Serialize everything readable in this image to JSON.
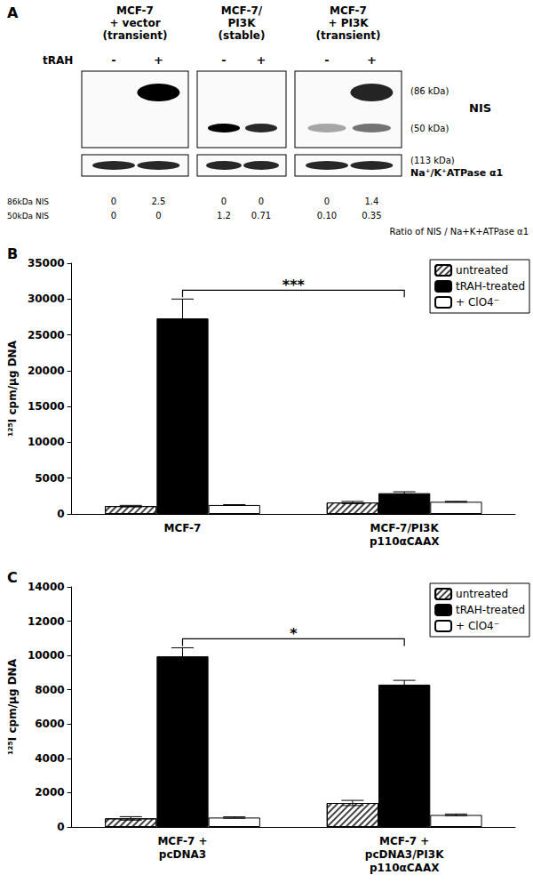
{
  "panel_a": {
    "label": "A",
    "groups": [
      {
        "title": [
          "MCF-7",
          "+ vector",
          "(transient)"
        ]
      },
      {
        "title": [
          "MCF-7/",
          "PI3K",
          "(stable)"
        ]
      },
      {
        "title": [
          "MCF-7",
          "+ PI3K",
          "(transient)"
        ]
      }
    ],
    "treatment_label": "tRAH",
    "treatment_signs": [
      "-",
      "+",
      "-",
      "+",
      "-",
      "+"
    ],
    "upper_blot_labels": [
      "(86 kDa)",
      "NIS",
      "(50 kDa)"
    ],
    "lower_blot_labels": [
      "(113 kDa)",
      "Na⁺/K⁺ATPase α1"
    ],
    "ratio_rows": [
      {
        "label": "86kDa NIS",
        "values": [
          "0",
          "2.5",
          "0",
          "0",
          "0",
          "1.4"
        ]
      },
      {
        "label": "50kDa NIS",
        "values": [
          "0",
          "0",
          "1.2",
          "0.71",
          "0.10",
          "0.35"
        ]
      }
    ],
    "ratio_note": "Ratio of NIS / Na+K+ATPase α1"
  },
  "chart_data": [
    {
      "panel": "B",
      "type": "bar",
      "categories": [
        "MCF-7",
        "MCF-7/PI3K\np110αCAAX"
      ],
      "y_label": "¹²⁵I cpm/µg DNA",
      "ylim": [
        0,
        35000
      ],
      "yticks": [
        0,
        5000,
        10000,
        15000,
        20000,
        25000,
        30000,
        35000
      ],
      "grid": false,
      "legend": "top-right",
      "series": [
        {
          "name": "untreated",
          "color": "#ffffff",
          "values": [
            1100,
            1600
          ],
          "errors": [
            100,
            150
          ]
        },
        {
          "name": "tRAH-treated",
          "color": "#000000",
          "values": [
            27300,
            2900
          ],
          "errors": [
            2700,
            200
          ]
        },
        {
          "name": "+ ClO4⁻",
          "color": "#ffffff",
          "values": [
            1250,
            1700
          ],
          "errors": [
            50,
            60
          ]
        }
      ],
      "significance": [
        {
          "categories": [
            0,
            1
          ],
          "series": "tRAH-treated",
          "label": "***"
        }
      ]
    },
    {
      "panel": "C",
      "type": "bar",
      "categories": [
        "MCF-7 +\npcDNA3",
        "MCF-7 +\npcDNA3/PI3K\np110αCAAX"
      ],
      "y_label": "¹²⁵I cpm/µg DNA",
      "ylim": [
        0,
        14000
      ],
      "yticks": [
        0,
        2000,
        4000,
        6000,
        8000,
        10000,
        12000,
        14000
      ],
      "grid": false,
      "legend": "top-right",
      "series": [
        {
          "name": "untreated",
          "color": "#ffffff",
          "values": [
            500,
            1400
          ],
          "errors": [
            100,
            150
          ]
        },
        {
          "name": "tRAH-treated",
          "color": "#000000",
          "values": [
            9950,
            8300
          ],
          "errors": [
            500,
            250
          ]
        },
        {
          "name": "+ ClO4⁻",
          "color": "#ffffff",
          "values": [
            550,
            700
          ],
          "errors": [
            40,
            50
          ]
        }
      ],
      "significance": [
        {
          "categories": [
            0,
            1
          ],
          "series": "tRAH-treated",
          "label": "*"
        }
      ]
    }
  ]
}
